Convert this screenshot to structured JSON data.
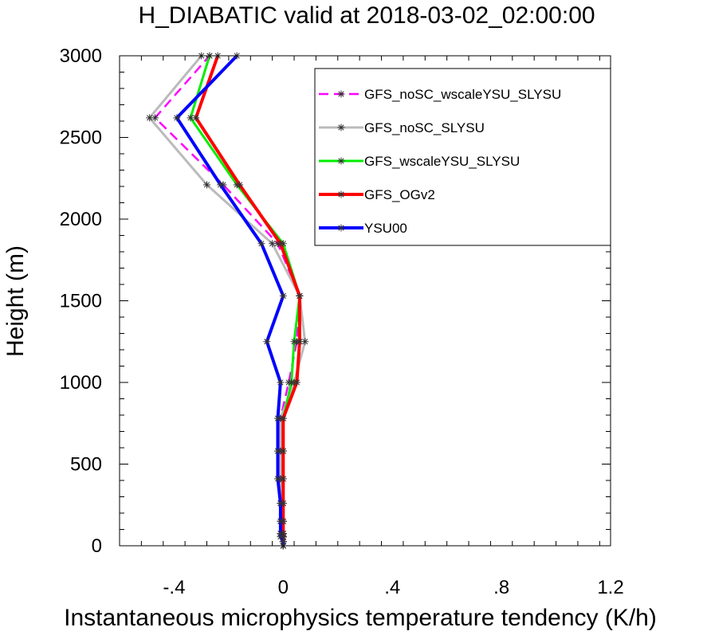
{
  "chart_data": {
    "type": "line",
    "title": "H_DIABATIC valid at 2018-03-02_02:00:00",
    "xlabel": "Instantaneous microphysics temperature tendency (K/h)",
    "ylabel": "Height (m)",
    "xlim": [
      -0.6,
      1.2
    ],
    "ylim": [
      0,
      3000
    ],
    "xticks": [
      {
        "value": -0.4,
        "label": "-.4"
      },
      {
        "value": 0,
        "label": "0"
      },
      {
        "value": 0.4,
        "label": ".4"
      },
      {
        "value": 0.8,
        "label": ".8"
      },
      {
        "value": 1.2,
        "label": "1.2"
      }
    ],
    "yticks": [
      {
        "value": 0,
        "label": "0"
      },
      {
        "value": 500,
        "label": "500"
      },
      {
        "value": 1000,
        "label": "1000"
      },
      {
        "value": 1500,
        "label": "1500"
      },
      {
        "value": 2000,
        "label": "2000"
      },
      {
        "value": 2500,
        "label": "2500"
      },
      {
        "value": 3000,
        "label": "3000"
      }
    ],
    "grid": false,
    "legend_position": "top-right",
    "heights": [
      0,
      25,
      55,
      75,
      150,
      260,
      410,
      580,
      780,
      1000,
      1250,
      1530,
      1850,
      2210,
      2620,
      3000
    ],
    "series": [
      {
        "name": "GFS_noSC_wscaleYSU_SLYSU",
        "color": "#ff00ff",
        "dashed": true,
        "width": 2.5,
        "values": [
          0.0,
          0.0,
          0.0,
          -0.01,
          -0.01,
          -0.01,
          -0.01,
          -0.01,
          -0.01,
          0.02,
          0.05,
          0.06,
          -0.02,
          -0.22,
          -0.47,
          -0.27
        ]
      },
      {
        "name": "GFS_noSC_SLYSU",
        "color": "#bbbbbb",
        "dashed": false,
        "width": 3,
        "values": [
          0.0,
          0.0,
          0.0,
          0.0,
          0.0,
          -0.01,
          -0.01,
          -0.01,
          -0.01,
          0.04,
          0.08,
          0.06,
          -0.04,
          -0.28,
          -0.49,
          -0.3
        ]
      },
      {
        "name": "GFS_wscaleYSU_SLYSU",
        "color": "#00ee00",
        "dashed": false,
        "width": 3,
        "values": [
          0.0,
          0.0,
          0.0,
          0.0,
          0.0,
          0.0,
          0.0,
          0.0,
          0.0,
          0.03,
          0.04,
          0.06,
          0.0,
          -0.17,
          -0.34,
          -0.27
        ]
      },
      {
        "name": "GFS_OGv2",
        "color": "#ff0000",
        "dashed": false,
        "width": 4,
        "values": [
          0.0,
          0.0,
          0.0,
          0.0,
          0.0,
          0.0,
          0.0,
          0.0,
          0.0,
          0.05,
          0.06,
          0.06,
          -0.01,
          -0.16,
          -0.32,
          -0.24
        ]
      },
      {
        "name": "YSU00",
        "color": "#0000ff",
        "dashed": false,
        "width": 4,
        "values": [
          0.0,
          0.0,
          -0.01,
          -0.01,
          -0.01,
          -0.01,
          -0.02,
          -0.02,
          -0.02,
          -0.01,
          -0.06,
          0.0,
          -0.08,
          -0.23,
          -0.39,
          -0.17
        ]
      }
    ]
  }
}
